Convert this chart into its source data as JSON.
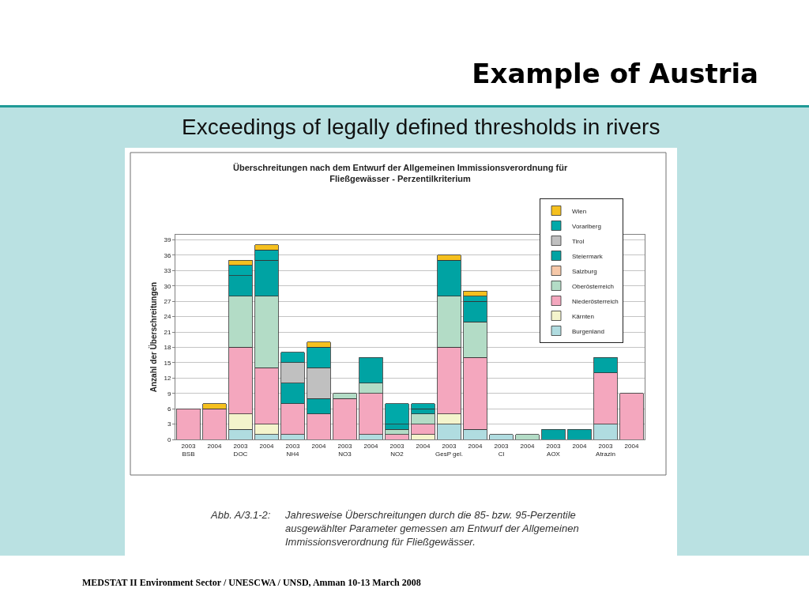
{
  "chart_data": {
    "type": "bar",
    "stacked": true,
    "title": "Example of Austria",
    "subtitle": "Exceedings of legally defined thresholds in rivers",
    "ylabel": "Anzahl der Überschreitungen",
    "categories": [
      "2003\nBSB",
      "2004",
      "2003\nDOC",
      "2004",
      "2003\nNH4",
      "2004",
      "2003\nNO3",
      "2004",
      "2003\nNO2",
      "2004",
      "2003\nGesP gel.",
      "2004",
      "2003\nCl",
      "2004",
      "2003\nAOX",
      "2004",
      "2003\nAtrazin",
      "2004"
    ],
    "series": [
      {
        "name": "Burgenland",
        "color": "#b0dce0",
        "values": [
          null,
          null,
          2,
          1,
          1,
          null,
          null,
          1,
          null,
          null,
          3,
          2,
          1,
          null,
          null,
          null,
          3,
          null
        ]
      },
      {
        "name": "Kärnten",
        "color": "#f4f4cc",
        "values": [
          null,
          null,
          3,
          2,
          null,
          null,
          null,
          null,
          null,
          1,
          2,
          null,
          null,
          null,
          null,
          null,
          null,
          null
        ]
      },
      {
        "name": "Niederösterreich",
        "color": "#f4a7be",
        "values": [
          6,
          6,
          13,
          11,
          6,
          5,
          8,
          8,
          1,
          2,
          13,
          14,
          null,
          null,
          null,
          null,
          10,
          9
        ]
      },
      {
        "name": "Oberösterreich",
        "color": "#b3dcc6",
        "values": [
          null,
          null,
          10,
          14,
          null,
          null,
          1,
          2,
          1,
          2,
          10,
          7,
          null,
          1,
          null,
          null,
          null,
          null
        ]
      },
      {
        "name": "Salzburg",
        "color": "#f6c8a8",
        "values": [
          null,
          null,
          null,
          null,
          null,
          null,
          null,
          null,
          null,
          null,
          null,
          null,
          null,
          null,
          null,
          null,
          null,
          null
        ]
      },
      {
        "name": "Steiermark",
        "color": "#00a3a3",
        "values": [
          null,
          null,
          4,
          7,
          4,
          3,
          null,
          5,
          1,
          1,
          7,
          4,
          null,
          null,
          2,
          2,
          3,
          null
        ]
      },
      {
        "name": "Tirol",
        "color": "#c0c0c0",
        "values": [
          null,
          null,
          null,
          null,
          4,
          6,
          null,
          null,
          null,
          null,
          null,
          null,
          null,
          null,
          null,
          null,
          null,
          null
        ]
      },
      {
        "name": "Vorarlberg",
        "color": "#00a9a9",
        "values": [
          null,
          null,
          2,
          2,
          2,
          4,
          null,
          null,
          4,
          1,
          null,
          1,
          null,
          null,
          null,
          null,
          null,
          null
        ]
      },
      {
        "name": "Wien",
        "color": "#f5c01e",
        "values": [
          null,
          1,
          1,
          1,
          null,
          1,
          null,
          null,
          null,
          null,
          1,
          1,
          null,
          null,
          null,
          null,
          null,
          null
        ]
      }
    ],
    "ylim": [
      0,
      40
    ],
    "yticks": [
      0,
      3,
      6,
      9,
      12,
      15,
      18,
      21,
      24,
      27,
      30,
      33,
      36,
      39
    ],
    "grid": "y",
    "legend": "top right",
    "annotations": [
      "Überschreitungen nach dem Entwurf der Allgemeinen Immissionsverordnung für\nFließgewässer - Perzentilkriterium",
      "Abb. A/3.1-2:",
      "Jahresweise Überschreitungen durch die 85- bzw. 95-Perzentile\nausgewählter Parameter gemessen am Entwurf der Allgemeinen\nImmissionsverordnung für Fließgewässer.",
      "MEDSTAT II Environment Sector / UNESCWA / UNSD, Amman 10-13 March 2008"
    ]
  }
}
